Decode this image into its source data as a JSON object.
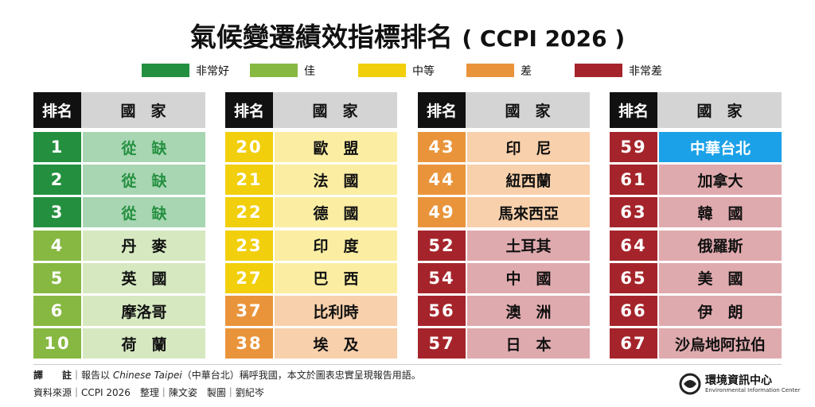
{
  "title": "氣候變遷績效指標排名",
  "title_suffix": "( CCPI 2026 )",
  "legend": [
    {
      "label": "非常好",
      "color": "#24903f",
      "light": "#a8d6b3",
      "text_color": "#24903f"
    },
    {
      "label": "佳",
      "color": "#87b842",
      "light": "#d6e8c0",
      "text_color": "#111111"
    },
    {
      "label": "中等",
      "color": "#f1cf0c",
      "light": "#fbeea2",
      "text_color": "#111111"
    },
    {
      "label": "差",
      "color": "#e9943b",
      "light": "#f8d0ab",
      "text_color": "#111111"
    },
    {
      "label": "非常差",
      "color": "#a5242b",
      "light": "#dfaaae",
      "text_color": "#111111"
    }
  ],
  "header": [
    "排名",
    "國　家"
  ],
  "highlight_color": "#1ba1e8",
  "tables": [
    {
      "rows": [
        {
          "rank": 1,
          "country": "從　缺",
          "level": 0
        },
        {
          "rank": 2,
          "country": "從　缺",
          "level": 0
        },
        {
          "rank": 3,
          "country": "從　缺",
          "level": 0
        },
        {
          "rank": 4,
          "country": "丹　麥",
          "level": 1
        },
        {
          "rank": 5,
          "country": "英　國",
          "level": 1
        },
        {
          "rank": 6,
          "country": "摩洛哥",
          "level": 1
        },
        {
          "rank": 10,
          "country": "荷　蘭",
          "level": 1
        }
      ]
    },
    {
      "rows": [
        {
          "rank": 20,
          "country": "歐　盟",
          "level": 2
        },
        {
          "rank": 21,
          "country": "法　國",
          "level": 2
        },
        {
          "rank": 22,
          "country": "德　國",
          "level": 2
        },
        {
          "rank": 23,
          "country": "印　度",
          "level": 2
        },
        {
          "rank": 27,
          "country": "巴　西",
          "level": 2
        },
        {
          "rank": 37,
          "country": "比利時",
          "level": 3
        },
        {
          "rank": 38,
          "country": "埃　及",
          "level": 3
        }
      ]
    },
    {
      "rows": [
        {
          "rank": 43,
          "country": "印　尼",
          "level": 3
        },
        {
          "rank": 44,
          "country": "紐西蘭",
          "level": 3
        },
        {
          "rank": 49,
          "country": "馬來西亞",
          "level": 3
        },
        {
          "rank": 52,
          "country": "土耳其",
          "level": 4
        },
        {
          "rank": 54,
          "country": "中　國",
          "level": 4
        },
        {
          "rank": 56,
          "country": "澳　洲",
          "level": 4
        },
        {
          "rank": 57,
          "country": "日　本",
          "level": 4
        }
      ]
    },
    {
      "rows": [
        {
          "rank": 59,
          "country": "中華台北",
          "level": 4,
          "highlight": true
        },
        {
          "rank": 61,
          "country": "加拿大",
          "level": 4
        },
        {
          "rank": 63,
          "country": "韓　國",
          "level": 4
        },
        {
          "rank": 64,
          "country": "俄羅斯",
          "level": 4
        },
        {
          "rank": 65,
          "country": "美　國",
          "level": 4
        },
        {
          "rank": 66,
          "country": "伊　朗",
          "level": 4
        },
        {
          "rank": 67,
          "country": "沙烏地阿拉伯",
          "level": 4
        }
      ]
    }
  ],
  "footer": {
    "note_label": "譯　　註",
    "note_pre": "｜報告以 ",
    "note_italic": "Chinese Taipei",
    "note_post": "（中華台北）稱呼我國，本文於圖表忠實呈現報告用語。",
    "source": "資料來源｜CCPI 2026　整理｜陳文姿　製圖｜劉紀岑"
  },
  "logo": {
    "name": "環境資訊中心",
    "english": "Environmental Information Center"
  }
}
